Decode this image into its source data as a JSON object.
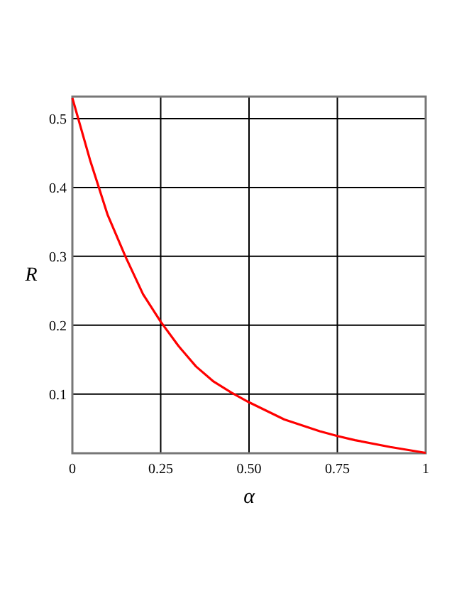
{
  "chart_data": {
    "type": "line",
    "xlabel": "α",
    "ylabel": "R",
    "x": [
      0,
      0.05,
      0.1,
      0.15,
      0.2,
      0.25,
      0.3,
      0.35,
      0.4,
      0.45,
      0.5,
      0.6,
      0.7,
      0.75,
      0.8,
      0.9,
      1
    ],
    "series": [
      {
        "color": "#ff0000",
        "values": [
          0.53,
          0.44,
          0.36,
          0.3,
          0.245,
          0.205,
          0.17,
          0.14,
          0.118,
          0.102,
          0.088,
          0.063,
          0.046,
          0.039,
          0.033,
          0.023,
          0.0145
        ]
      }
    ],
    "xlim": [
      0,
      1
    ],
    "ylim": [
      0.014,
      0.532
    ],
    "xticks": [
      0,
      0.25,
      {
        "value": 0.5,
        "label": "0.50"
      },
      0.75,
      1
    ],
    "yticks": [
      0.1,
      0.2,
      0.3,
      0.4,
      0.5
    ],
    "grid": true,
    "marker": "none",
    "line_style": "solid"
  }
}
